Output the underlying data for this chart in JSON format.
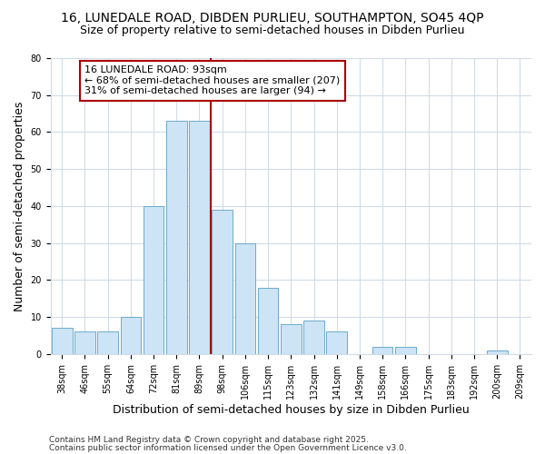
{
  "title1": "16, LUNEDALE ROAD, DIBDEN PURLIEU, SOUTHAMPTON, SO45 4QP",
  "title2": "Size of property relative to semi-detached houses in Dibden Purlieu",
  "xlabel": "Distribution of semi-detached houses by size in Dibden Purlieu",
  "ylabel": "Number of semi-detached properties",
  "categories": [
    "38sqm",
    "46sqm",
    "55sqm",
    "64sqm",
    "72sqm",
    "81sqm",
    "89sqm",
    "98sqm",
    "106sqm",
    "115sqm",
    "123sqm",
    "132sqm",
    "141sqm",
    "149sqm",
    "158sqm",
    "166sqm",
    "175sqm",
    "183sqm",
    "192sqm",
    "200sqm",
    "209sqm"
  ],
  "values": [
    7,
    6,
    6,
    10,
    40,
    63,
    63,
    39,
    30,
    18,
    8,
    9,
    6,
    0,
    2,
    2,
    0,
    0,
    0,
    1,
    0
  ],
  "bar_color": "#cce4f5",
  "bar_edge_color": "#6eaacc",
  "vline_x": 7,
  "vline_color": "#aa0000",
  "ylim": [
    0,
    80
  ],
  "yticks": [
    0,
    10,
    20,
    30,
    40,
    50,
    60,
    70,
    80
  ],
  "annotation_text": "16 LUNEDALE ROAD: 93sqm\n← 68% of semi-detached houses are smaller (207)\n31% of semi-detached houses are larger (94) →",
  "annotation_box_color": "#ffffff",
  "annotation_box_edge": "#aa0000",
  "footer1": "Contains HM Land Registry data © Crown copyright and database right 2025.",
  "footer2": "Contains public sector information licensed under the Open Government Licence v3.0.",
  "background_color": "#ffffff",
  "plot_background": "#ffffff",
  "grid_color": "#d0dce8",
  "title_fontsize": 10,
  "subtitle_fontsize": 9,
  "tick_fontsize": 7,
  "label_fontsize": 9,
  "footer_fontsize": 6.5,
  "annot_fontsize": 8
}
